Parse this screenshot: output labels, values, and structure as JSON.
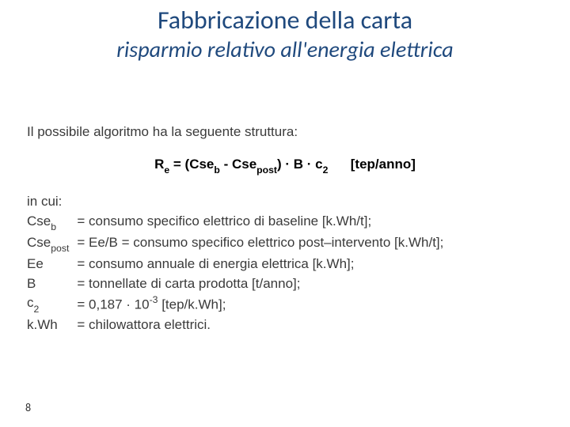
{
  "title": "Fabbricazione della carta",
  "subtitle": "risparmio relativo all'energia elettrica",
  "intro": "Il possibile algoritmo ha la seguente struttura:",
  "formula": {
    "lhs": "R",
    "lhs_sub": "e",
    "rhs_open": " = (Cse",
    "rhs_sub1": "b",
    "rhs_mid": " - Cse",
    "rhs_sub2": "post",
    "rhs_close": ") · B · c",
    "rhs_sub3": "2",
    "unit_spacer": "      ",
    "unit": "[tep/anno]"
  },
  "incui": "in cui:",
  "defs": [
    {
      "sym": "Cse",
      "sub": "b",
      "def": "= consumo specifico elettrico di baseline [k.Wh/t];"
    },
    {
      "sym": "Cse",
      "sub": "post",
      "def": "= Ee/B = consumo specifico elettrico post–intervento  [k.Wh/t];"
    },
    {
      "sym": "Ee",
      "sub": "",
      "def": "= consumo annuale di energia elettrica [k.Wh];"
    },
    {
      "sym": "B",
      "sub": "",
      "def": "= tonnellate di carta prodotta [t/anno];"
    },
    {
      "sym": "c",
      "sub": "2",
      "def_pre": "= 0,187 · 10",
      "def_sup": "-3",
      "def_post": " [tep/k.Wh];"
    },
    {
      "sym": "k.Wh",
      "sub": "",
      "def": "= chilowattora elettrici."
    }
  ],
  "page_number": "8"
}
